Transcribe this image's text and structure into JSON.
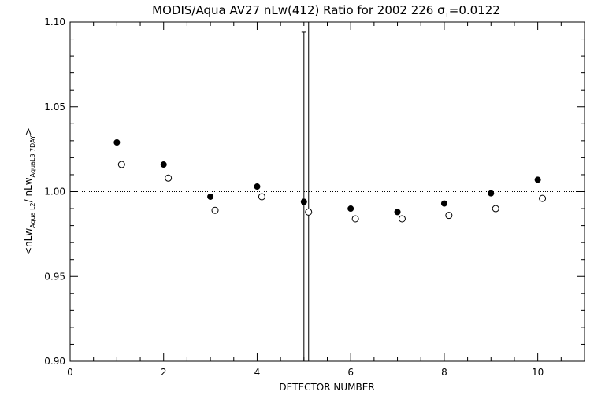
{
  "chart_data": {
    "type": "scatter",
    "title": "MODIS/Aqua AV27 nLw(412) Ratio for 2002 226",
    "title_sigma_symbol": "σ",
    "title_sigma_sub": "1",
    "title_sigma_value": "=0.0122",
    "xlabel": "DETECTOR NUMBER",
    "ylabel_parts": {
      "open": "<nLw",
      "sub1": "Aqua L2",
      "mid": "/ nLw",
      "sub2": "AquaL3 7DAY",
      "close": ">"
    },
    "xlim": [
      0,
      11
    ],
    "ylim": [
      0.9,
      1.1
    ],
    "xticks": [
      0,
      2,
      4,
      6,
      8,
      10
    ],
    "xtick_labels": [
      "0",
      "2",
      "4",
      "6",
      "8",
      "10"
    ],
    "yticks": [
      0.9,
      0.95,
      1.0,
      1.05,
      1.1
    ],
    "ytick_labels": [
      "0.90",
      "0.95",
      "1.00",
      "1.05",
      "1.10"
    ],
    "reference_line": 1.0,
    "grid": false,
    "legend": "none",
    "series": [
      {
        "marker": "filled-circle",
        "x": [
          1,
          2,
          3,
          4,
          5,
          6,
          7,
          8,
          9,
          10
        ],
        "y": [
          1.029,
          1.016,
          0.997,
          1.003,
          0.994,
          0.99,
          0.988,
          0.993,
          0.999,
          1.007
        ]
      },
      {
        "marker": "open-circle",
        "x": [
          1.1,
          2.1,
          3.1,
          4.1,
          5.1,
          6.1,
          7.1,
          8.1,
          9.1,
          10.1
        ],
        "y": [
          1.016,
          1.008,
          0.989,
          0.997,
          0.988,
          0.984,
          0.984,
          0.986,
          0.99,
          0.996
        ]
      }
    ],
    "error_bars": [
      {
        "x": 5,
        "low": 0.9,
        "high": 1.094
      },
      {
        "x": 5.1,
        "low": 0.9,
        "high": 1.1
      }
    ]
  }
}
